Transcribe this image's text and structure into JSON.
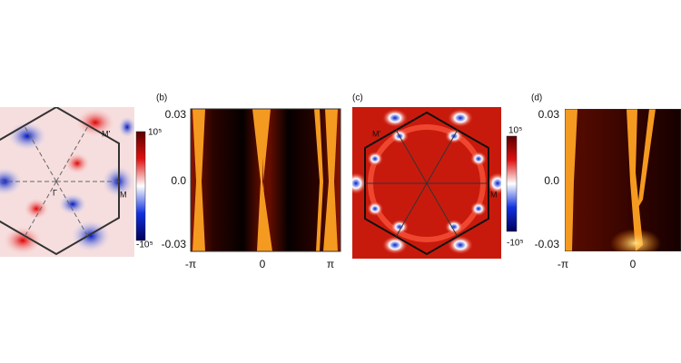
{
  "panel_a": {
    "points": [
      "M'",
      "M",
      "Γ"
    ],
    "colorbar": [
      "10⁵",
      "-10⁵"
    ]
  },
  "panel_b": {
    "label": "(b)",
    "yticks": [
      "0.03",
      "0.0",
      "-0.03"
    ],
    "xticks": [
      "-π",
      "0",
      "π"
    ]
  },
  "panel_c": {
    "label": "(c)",
    "points": [
      "M'",
      "M"
    ],
    "colorbar": [
      "10⁵",
      "-10⁵"
    ]
  },
  "panel_d": {
    "label": "(d)",
    "yticks": [
      "0.03",
      "0.0",
      "-0.03"
    ],
    "xticks": [
      "-π",
      "0"
    ]
  }
}
